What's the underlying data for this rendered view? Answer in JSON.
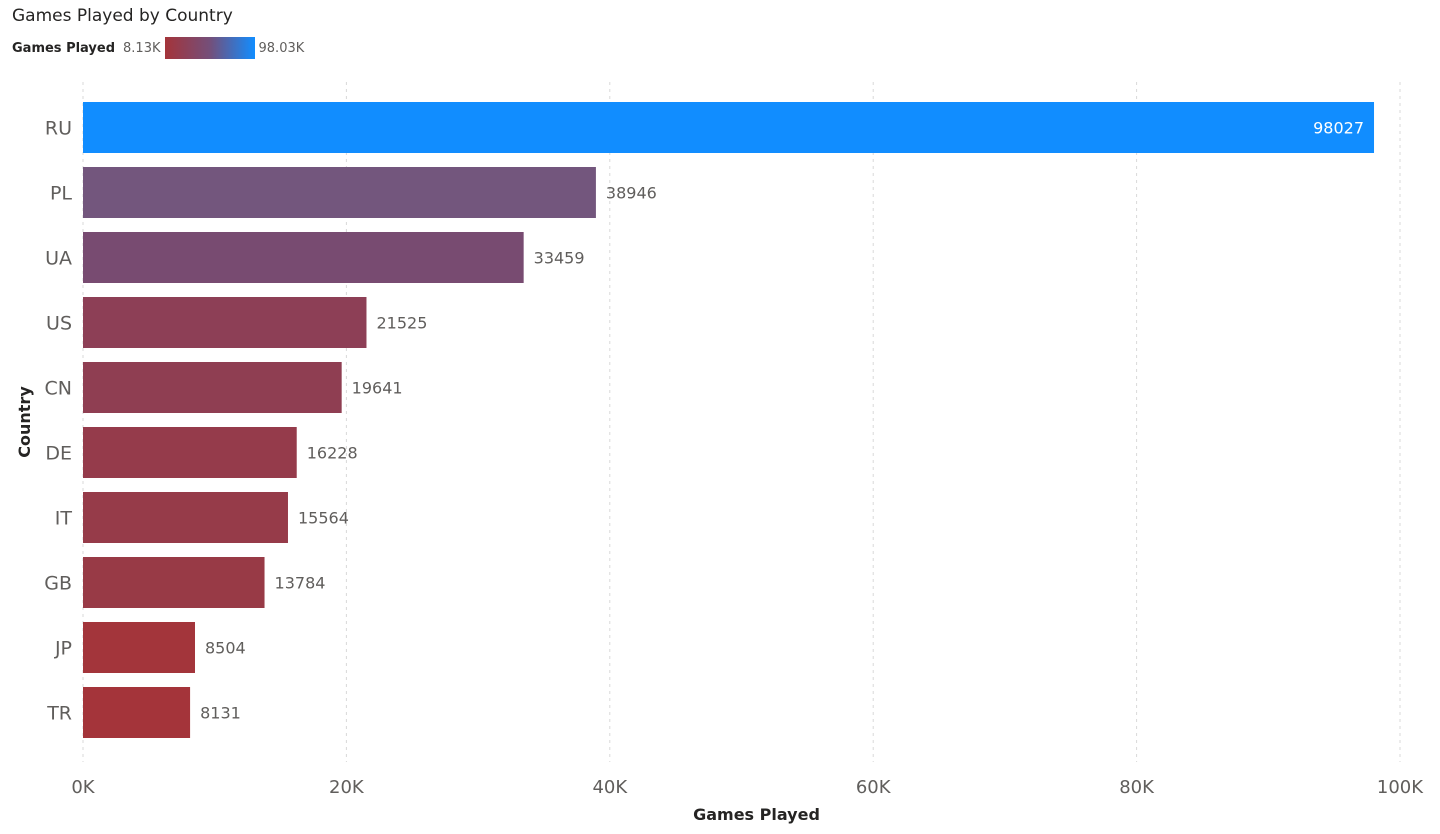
{
  "chart_data": {
    "type": "bar",
    "orientation": "horizontal",
    "title": "Games Played by Country",
    "xlabel": "Games Played",
    "ylabel": "Country",
    "categories": [
      "RU",
      "PL",
      "UA",
      "US",
      "CN",
      "DE",
      "IT",
      "GB",
      "JP",
      "TR"
    ],
    "values": [
      98027,
      38946,
      33459,
      21525,
      19641,
      16228,
      15564,
      13784,
      8504,
      8131
    ],
    "data_labels": [
      "98027",
      "38946",
      "33459",
      "21525",
      "19641",
      "16228",
      "15564",
      "13784",
      "8504",
      "8131"
    ],
    "xlim": [
      0,
      100000
    ],
    "x_ticks": [
      0,
      20000,
      40000,
      60000,
      80000,
      100000
    ],
    "x_tick_labels": [
      "0K",
      "20K",
      "40K",
      "60K",
      "80K",
      "100K"
    ],
    "grid": "vertical dashed",
    "legend": {
      "title": "Games Played",
      "min_label": "8.13K",
      "max_label": "98.03K",
      "min_color": "#a4343a",
      "mid_color": "#744f7a",
      "max_color": "#118dff",
      "placement": "top-left"
    },
    "bar_colors": [
      "#118dff",
      "#73567d",
      "#784b71",
      "#8d3f56",
      "#8f3e52",
      "#953b4b",
      "#963b49",
      "#983a46",
      "#a3353b",
      "#a4343a"
    ]
  }
}
